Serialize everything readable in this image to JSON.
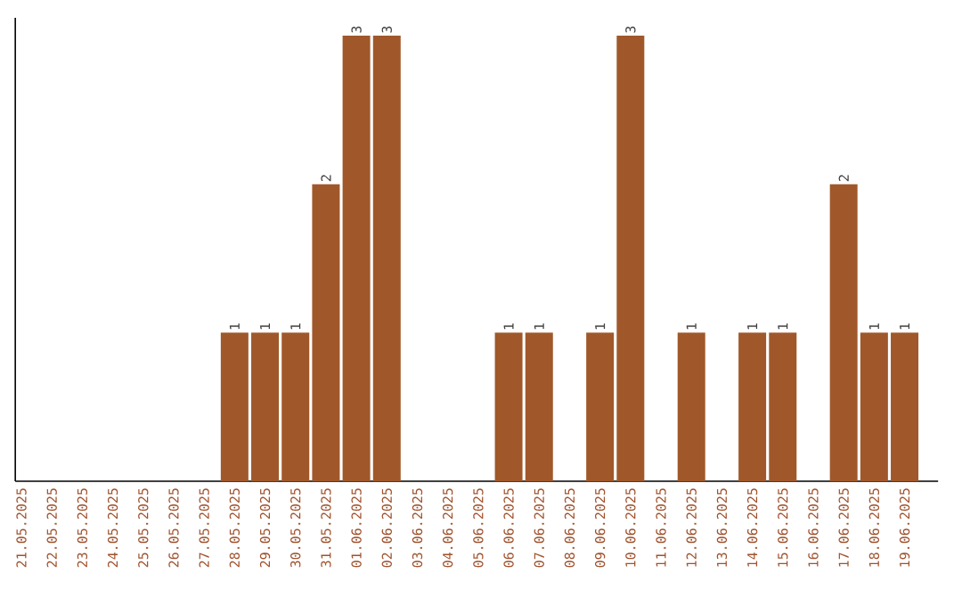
{
  "chart_data": {
    "type": "bar",
    "categories": [
      "21.05.2025",
      "22.05.2025",
      "23.05.2025",
      "24.05.2025",
      "25.05.2025",
      "26.05.2025",
      "27.05.2025",
      "28.05.2025",
      "29.05.2025",
      "30.05.2025",
      "31.05.2025",
      "01.06.2025",
      "02.06.2025",
      "03.06.2025",
      "04.06.2025",
      "05.06.2025",
      "06.06.2025",
      "07.06.2025",
      "08.06.2025",
      "09.06.2025",
      "10.06.2025",
      "11.06.2025",
      "12.06.2025",
      "13.06.2025",
      "14.06.2025",
      "15.06.2025",
      "16.06.2025",
      "17.06.2025",
      "18.06.2025",
      "19.06.2025"
    ],
    "values": [
      0,
      0,
      0,
      0,
      0,
      0,
      0,
      1,
      1,
      1,
      2,
      3,
      3,
      0,
      0,
      0,
      1,
      1,
      0,
      1,
      3,
      0,
      1,
      0,
      1,
      1,
      0,
      2,
      1,
      1
    ],
    "value_labels": [
      null,
      null,
      null,
      null,
      null,
      null,
      null,
      "1",
      "1",
      "1",
      "2",
      "3",
      "3",
      null,
      null,
      null,
      "1",
      "1",
      null,
      "1",
      "3",
      null,
      "1",
      null,
      "1",
      "1",
      null,
      "2",
      "1",
      "1"
    ],
    "color": "#a0582a",
    "tick_labels": "x",
    "grid": false
  }
}
